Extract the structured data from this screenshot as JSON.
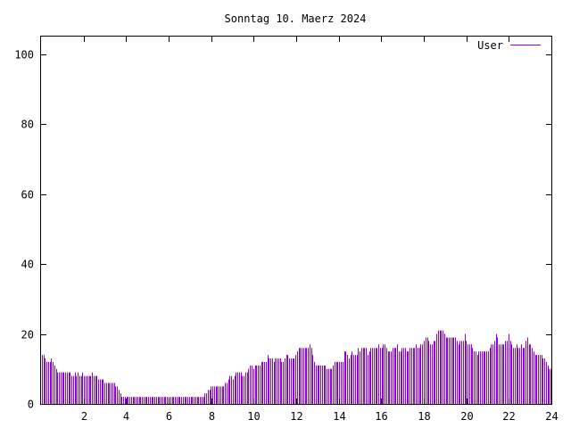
{
  "chart_data": {
    "type": "bar",
    "title": "Sonntag 10. Maerz 2024",
    "xlabel": "",
    "ylabel": "",
    "xlim": [
      0,
      24
    ],
    "ylim": [
      0,
      105
    ],
    "x_ticks": [
      2,
      4,
      6,
      8,
      10,
      12,
      14,
      16,
      18,
      20,
      22,
      24
    ],
    "y_ticks": [
      0,
      20,
      40,
      60,
      80,
      100
    ],
    "x_tick_labels": [
      "2",
      "4",
      "6",
      "8",
      "10",
      "12",
      "14",
      "16",
      "18",
      "20",
      "22",
      "24"
    ],
    "y_tick_labels": [
      "0",
      "20",
      "40",
      "60",
      "80",
      "100"
    ],
    "grid": false,
    "legend_position": "top-right",
    "series": [
      {
        "name": "User",
        "color": "#9400d3",
        "values": [
          14,
          14,
          13,
          12,
          12,
          12,
          13,
          12,
          11,
          10,
          9,
          9,
          9,
          9,
          9,
          9,
          9,
          9,
          9,
          8,
          8,
          9,
          8,
          9,
          8,
          8,
          9,
          8,
          8,
          8,
          8,
          8,
          9,
          8,
          8,
          8,
          7,
          7,
          7,
          7,
          6,
          6,
          6,
          6,
          6,
          6,
          6,
          5,
          5,
          4,
          3,
          2,
          2,
          2,
          2,
          2,
          2,
          2,
          2,
          2,
          2,
          2,
          2,
          2,
          2,
          2,
          2,
          2,
          2,
          2,
          2,
          2,
          2,
          2,
          2,
          2,
          2,
          2,
          2,
          2,
          2,
          2,
          2,
          2,
          2,
          2,
          2,
          2,
          2,
          2,
          2,
          2,
          2,
          2,
          2,
          2,
          2,
          2,
          2,
          2,
          2,
          2,
          2,
          2,
          3,
          3,
          4,
          4,
          5,
          5,
          5,
          5,
          5,
          5,
          5,
          5,
          5,
          6,
          6,
          7,
          8,
          8,
          7,
          8,
          9,
          9,
          9,
          9,
          8,
          8,
          9,
          9,
          10,
          11,
          11,
          10,
          11,
          11,
          11,
          11,
          12,
          12,
          12,
          12,
          14,
          13,
          13,
          13,
          12,
          13,
          13,
          13,
          13,
          12,
          12,
          13,
          14,
          14,
          13,
          13,
          13,
          13,
          14,
          15,
          16,
          16,
          16,
          16,
          16,
          16,
          16,
          17,
          16,
          14,
          12,
          11,
          11,
          11,
          11,
          11,
          11,
          11,
          10,
          10,
          10,
          10,
          11,
          12,
          12,
          12,
          12,
          12,
          12,
          15,
          15,
          14,
          13,
          14,
          15,
          14,
          14,
          14,
          16,
          15,
          16,
          16,
          16,
          16,
          14,
          15,
          16,
          16,
          16,
          16,
          16,
          17,
          16,
          16,
          17,
          17,
          16,
          15,
          15,
          15,
          16,
          16,
          16,
          17,
          15,
          15,
          16,
          16,
          16,
          15,
          15,
          16,
          16,
          16,
          16,
          17,
          16,
          16,
          17,
          17,
          18,
          19,
          19,
          18,
          17,
          17,
          18,
          18,
          20,
          21,
          21,
          21,
          21,
          20,
          19,
          19,
          19,
          19,
          19,
          19,
          19,
          18,
          17,
          18,
          18,
          18,
          20,
          18,
          17,
          17,
          17,
          16,
          15,
          15,
          14,
          15,
          15,
          15,
          15,
          15,
          15,
          15,
          16,
          17,
          17,
          18,
          20,
          19,
          17,
          17,
          17,
          17,
          18,
          18,
          20,
          18,
          17,
          16,
          16,
          17,
          16,
          16,
          17,
          16,
          16,
          18,
          19,
          17,
          17,
          16,
          15,
          14,
          14,
          14,
          14,
          14,
          13,
          13,
          12,
          11,
          10,
          10
        ]
      }
    ]
  }
}
